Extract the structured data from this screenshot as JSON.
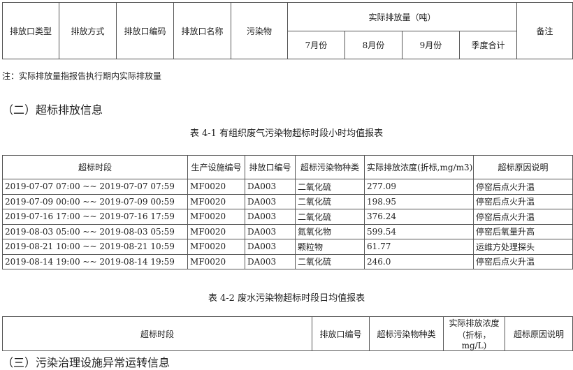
{
  "table1": {
    "headers": [
      "排放口类型",
      "排放方式",
      "排放口编码",
      "排放口名称",
      "污染物"
    ],
    "group_header": "实际排放量（吨）",
    "sub_headers": [
      "7月份",
      "8月份",
      "9月份",
      "季度合计"
    ],
    "remark": "备注"
  },
  "note": "注：实际排放量指报告执行期内实际排放量",
  "section2": "（二）超标排放信息",
  "caption1": "表 4-1 有组织废气污染物超标时段小时均值报表",
  "table2": {
    "headers": [
      "超标时段",
      "生产设施编号",
      "排放口编号",
      "超标污染物种类",
      "实际排放浓度(折标,mg/m3)",
      "超标原因说明"
    ],
    "rows": [
      [
        "2019-07-07 07:00 ~~ 2019-07-07 07:59",
        "MF0020",
        "DA003",
        "二氧化硫",
        "277.09",
        "停窑后点火升温"
      ],
      [
        "2019-07-09 00:00 ~~ 2019-07-09 00:59",
        "MF0020",
        "DA003",
        "二氧化硫",
        "198.95",
        "停窑后点火升温"
      ],
      [
        "2019-07-16 17:00 ~~ 2019-07-16 17:59",
        "MF0020",
        "DA003",
        "二氧化硫",
        "376.24",
        "停窑后点火升温"
      ],
      [
        "2019-08-03 05:00 ~~ 2019-08-03 05:59",
        "MF0020",
        "DA003",
        "氮氧化物",
        "599.54",
        "停窑后氧量升高"
      ],
      [
        "2019-08-21 10:00 ~~ 2019-08-21 10:59",
        "MF0020",
        "DA003",
        "颗粒物",
        "61.77",
        "运维方处理探头"
      ],
      [
        "2019-08-14 19:00 ~~ 2019-08-14 19:59",
        "MF0020",
        "DA003",
        "二氧化硫",
        "246.0",
        "停窑后点火升温"
      ]
    ]
  },
  "caption2": "表 4-2 废水污染物超标时段日均值报表",
  "table3": {
    "headers": [
      "超标时段",
      "排放口编号",
      "超标污染物种类",
      "实际排放浓度（折标，mg/L)",
      "超标原因说明"
    ]
  },
  "section3": "（三）污染治理设施异常运转信息"
}
